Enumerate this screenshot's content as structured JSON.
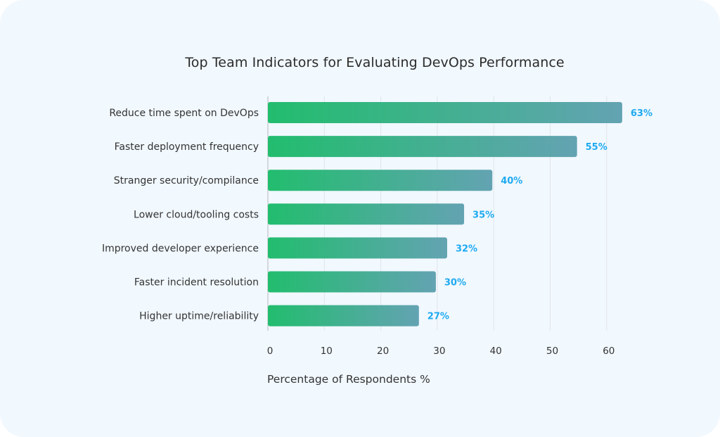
{
  "chart_data": {
    "type": "bar",
    "orientation": "horizontal",
    "title": "Top Team Indicators for Evaluating DevOps Performance",
    "xlabel": "Percentage of Respondents %",
    "ylabel": "",
    "categories": [
      "Reduce time spent on DevOps",
      "Faster deployment frequency",
      "Stranger security/compilance",
      "Lower cloud/tooling costs",
      "Improved developer experience",
      "Faster incident resolution",
      "Higher uptime/reliability"
    ],
    "values": [
      63,
      55,
      40,
      35,
      32,
      30,
      27
    ],
    "data_labels": [
      "63%",
      "55%",
      "40%",
      "35%",
      "32%",
      "30%",
      "27%"
    ],
    "xlim": [
      0,
      60
    ],
    "xticks": [
      "0",
      "10",
      "20",
      "30",
      "40",
      "50",
      "60"
    ],
    "grid": "vertical",
    "colors": {
      "bar_start": "#22bd6e",
      "bar_end": "#63a3b2",
      "label": "#1eaaf1",
      "background": "#f1f8fe"
    }
  }
}
